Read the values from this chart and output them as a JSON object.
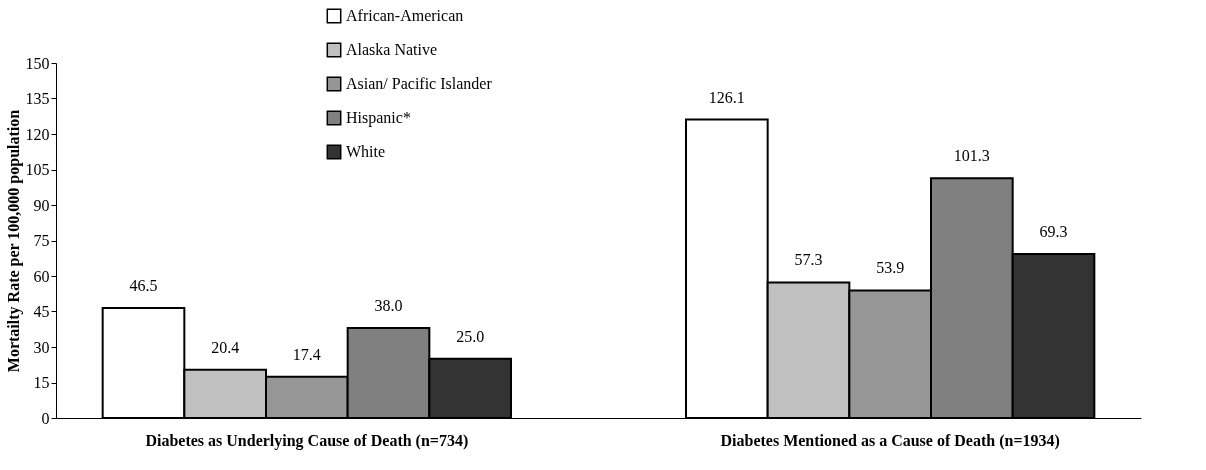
{
  "chart_data": {
    "type": "bar",
    "ylabel": "Mortailty Rate per 100,000 population",
    "categories": [
      "Diabetes as Underlying Cause of Death (n=734)",
      "Diabetes Mentioned as a Cause of Death (n=1934)"
    ],
    "series": [
      {
        "name": "African-American",
        "color": "#ffffff",
        "values": [
          46.5,
          126.1
        ]
      },
      {
        "name": "Alaska Native",
        "color": "#c0c0c0",
        "values": [
          20.4,
          57.3
        ]
      },
      {
        "name": "Asian/ Pacific Islander",
        "color": "#969696",
        "values": [
          17.4,
          53.9
        ]
      },
      {
        "name": "Hispanic*",
        "color": "#808080",
        "values": [
          38.0,
          101.3
        ]
      },
      {
        "name": "White",
        "color": "#333333",
        "values": [
          25.0,
          69.3
        ]
      }
    ],
    "ylim": [
      0,
      150
    ],
    "yticks": [
      0,
      15,
      30,
      45,
      60,
      75,
      90,
      105,
      120,
      135,
      150
    ],
    "value_labels": [
      [
        "46.5",
        "126.1"
      ],
      [
        "20.4",
        "57.3"
      ],
      [
        "17.4",
        "53.9"
      ],
      [
        "38.0",
        "101.3"
      ],
      [
        "25.0",
        "69.3"
      ]
    ],
    "grid": false,
    "legend": "top left"
  }
}
